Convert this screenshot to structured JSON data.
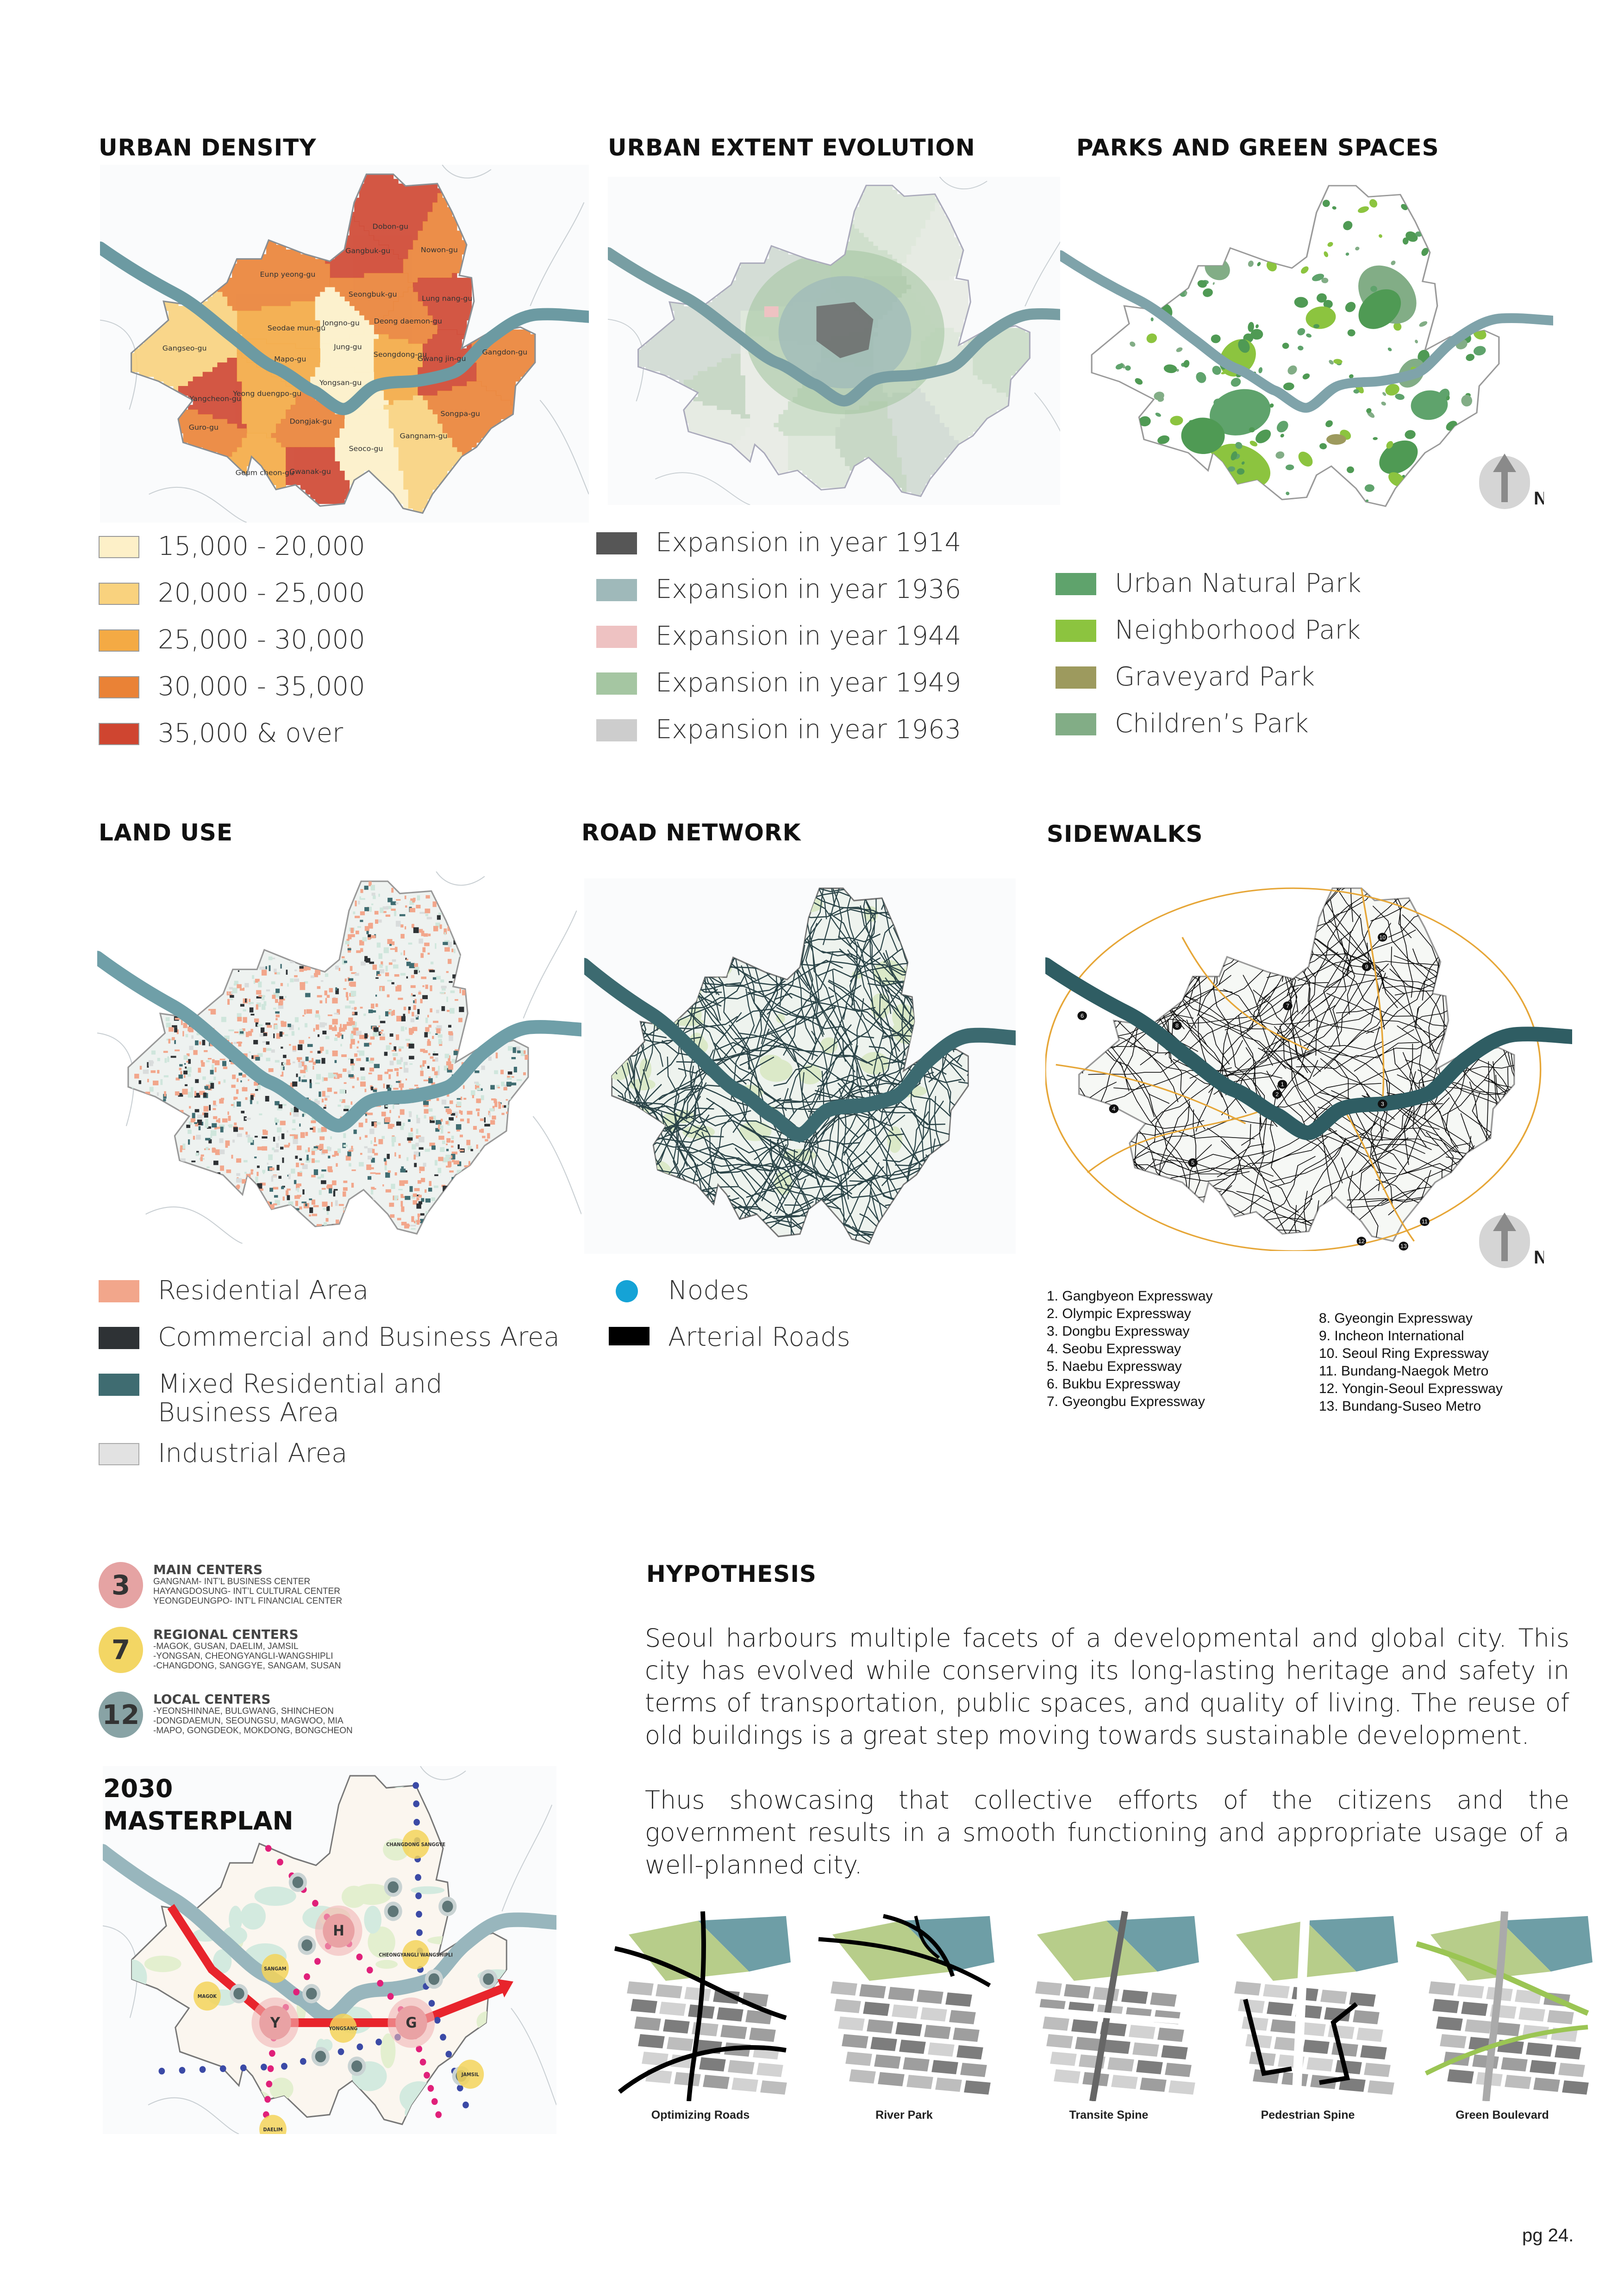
{
  "urban_density": {
    "title": "URBAN DENSITY",
    "legend": [
      {
        "label": "15,000 - 20,000",
        "color": "#fdf0c8"
      },
      {
        "label": "20,000 - 25,000",
        "color": "#f9d27e"
      },
      {
        "label": "25,000 - 30,000",
        "color": "#f4aa44"
      },
      {
        "label": "30,000 - 35,000",
        "color": "#ea8236"
      },
      {
        "label": "35,000 & over",
        "color": "#cf4530"
      }
    ],
    "districts": [
      {
        "name": "Dobon-gu",
        "class": 5
      },
      {
        "name": "Gangbuk-gu",
        "class": 5
      },
      {
        "name": "Nowon-gu",
        "class": 4
      },
      {
        "name": "Eunp yeong-gu",
        "class": 4
      },
      {
        "name": "Seongbuk-gu",
        "class": 4
      },
      {
        "name": "Lung nang-gu",
        "class": 5
      },
      {
        "name": "Seodae mun-gu",
        "class": 3
      },
      {
        "name": "Jongno-gu",
        "class": 1
      },
      {
        "name": "Deong daemon-gu",
        "class": 4
      },
      {
        "name": "Gangseo-gu",
        "class": 2
      },
      {
        "name": "Jung-gu",
        "class": 1
      },
      {
        "name": "Seongdong-gu",
        "class": 3
      },
      {
        "name": "Gwang jin-gu",
        "class": 5
      },
      {
        "name": "Gangdon-gu",
        "class": 4
      },
      {
        "name": "Mapo-gu",
        "class": 3
      },
      {
        "name": "Yongsan-gu",
        "class": 1
      },
      {
        "name": "Yangcheon-gu",
        "class": 5
      },
      {
        "name": "Yeong duengpo-gu",
        "class": 3
      },
      {
        "name": "Songpa-gu",
        "class": 4
      },
      {
        "name": "Dongjak-gu",
        "class": 4
      },
      {
        "name": "Guro-gu",
        "class": 4
      },
      {
        "name": "Gangnam-gu",
        "class": 2
      },
      {
        "name": "Seoco-gu",
        "class": 1
      },
      {
        "name": "Geum cheon-gu",
        "class": 3
      },
      {
        "name": "Gwanak-gu",
        "class": 5
      }
    ]
  },
  "urban_extent": {
    "title": "URBAN EXTENT EVOLUTION",
    "legend": [
      {
        "label": "Expansion in year 1914",
        "color": "#565656"
      },
      {
        "label": "Expansion in year 1936",
        "color": "#9fb9ba"
      },
      {
        "label": "Expansion in year 1944",
        "color": "#eec2c2"
      },
      {
        "label": "Expansion in year 1949",
        "color": "#a5c6a2"
      },
      {
        "label": "Expansion in year 1963",
        "color": "#cdcdcd"
      }
    ]
  },
  "parks": {
    "title": "PARKS AND GREEN SPACES",
    "legend": [
      {
        "label": "Urban Natural Park",
        "color": "#5fa36c"
      },
      {
        "label": "Neighborhood Park",
        "color": "#8cc43f"
      },
      {
        "label": "Graveyard Park",
        "color": "#9d9a5e"
      },
      {
        "label": "Children’s Park",
        "color": "#82ad86"
      }
    ],
    "north_label": "N"
  },
  "land_use": {
    "title": "LAND USE",
    "legend": [
      {
        "label": "Residential Area",
        "color": "#f2a68b"
      },
      {
        "label": "Commercial and Business Area",
        "color": "#2e3235"
      },
      {
        "label": "Mixed Residential and Business Area",
        "color": "#3f6c71"
      },
      {
        "label": "Industrial Area",
        "color": "#e2e2e2"
      }
    ]
  },
  "road_network": {
    "title": "ROAD NETWORK",
    "legend": [
      {
        "label": "Nodes",
        "color": "#15a3d6"
      },
      {
        "label": "Arterial Roads",
        "color": "#000000"
      }
    ]
  },
  "sidewalks": {
    "title": "SIDEWALKS",
    "north_label": "N",
    "roads_col1": [
      "1. Gangbyeon Expressway",
      "2. Olympic Expressway",
      "3. Dongbu Expressway",
      "4. Seobu Expressway",
      "5. Naebu Expressway",
      "6. Bukbu Expressway",
      "7. Gyeongbu Expressway"
    ],
    "roads_col2": [
      "8. Gyeongin Expressway",
      "9. Incheon International",
      "10. Seoul Ring Expressway",
      "11. Bundang-Naegok Metro",
      "12. Yongin-Seoul Expressway",
      "13. Bundang-Suseo Metro"
    ]
  },
  "centers": [
    {
      "count": "3",
      "title": "MAIN CENTERS",
      "color": "#e5a3a3",
      "lines": [
        "GANGNAM- INT’L BUSINESS CENTER",
        "HAYANGDOSUNG- INT’L CULTURAL CENTER",
        "YEONGDEUNGPO- INT’L FINANCIAL CENTER"
      ]
    },
    {
      "count": "7",
      "title": "REGIONAL CENTERS",
      "color": "#f3d664",
      "lines": [
        "-MAGOK, GUSAN, DAELIM, JAMSIL",
        "-YONGSAN, CHEONGYANGLI-WANGSHIPLI",
        "-CHANGDONG, SANGGYE, SANGAM, SUSAN"
      ]
    },
    {
      "count": "12",
      "title": "LOCAL CENTERS",
      "color": "#88a3a5",
      "lines": [
        "-YEONSHINNAE, BULGWANG, SHINCHEON",
        "-DONGDAEMUN, SEOUNGSU, MAGWOO, MIA",
        "-MAPO, GONGDEOK, MOKDONG, BONGCHEON"
      ]
    }
  ],
  "masterplan": {
    "title_line1": "2030",
    "title_line2": "MASTERPLAN",
    "main_centers": [
      "H",
      "Y",
      "G"
    ],
    "regional_centers": [
      "CHANGDONG SANGGYE",
      "CHEONGYANGLI WANGSHIPLI",
      "SANGAM",
      "MAGOK",
      "YONGSANG",
      "JAMSIL",
      "DAELIM"
    ]
  },
  "hypothesis": {
    "title": "HYPOTHESIS",
    "paragraph1": "Seoul harbours multiple facets of a developmental and global city. This city has evolved while conserving its long-lasting heritage and safety in terms of transportation, public spaces, and quality of living. The reuse of old buildings is a great step moving towards sustainable development.",
    "paragraph2": "Thus showcasing that collective efforts of the citizens and the government results in a smooth functioning and appropriate usage of a well-planned city."
  },
  "strategies": [
    {
      "label": "Optimizing Roads"
    },
    {
      "label": "River Park"
    },
    {
      "label": "Transite Spine"
    },
    {
      "label": "Pedestrian Spine"
    },
    {
      "label": "Green Boulevard"
    }
  ],
  "page_number": "pg 24."
}
